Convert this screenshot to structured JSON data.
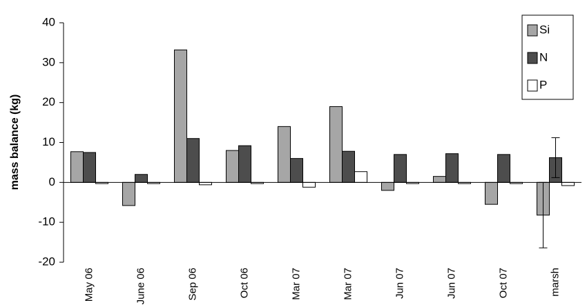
{
  "chart_data": {
    "type": "bar",
    "y_label": "mass balance (kg)",
    "categories": [
      "May 06",
      "June 06",
      "Sep 06",
      "Oct 06",
      "Mar 07",
      "Mar 07",
      "Jun 07",
      "Jun 07",
      "Oct 07",
      "marsh"
    ],
    "series": [
      {
        "name": "Si",
        "color": "#a6a6a6",
        "values": [
          7.7,
          -5.8,
          33.2,
          8,
          14,
          19,
          -2,
          1.5,
          -5.5,
          -8.2
        ],
        "errors": [
          null,
          null,
          null,
          null,
          null,
          null,
          null,
          null,
          null,
          8.2
        ]
      },
      {
        "name": "N",
        "color": "#4d4d4d",
        "values": [
          7.5,
          2,
          11,
          9.2,
          6,
          7.8,
          7,
          7.2,
          7,
          6.2
        ],
        "errors": [
          null,
          null,
          null,
          null,
          null,
          null,
          null,
          null,
          null,
          5
        ]
      },
      {
        "name": "P",
        "color": "#ffffff",
        "values": [
          -0.3,
          -0.3,
          -0.6,
          -0.3,
          -1.2,
          2.7,
          -0.3,
          -0.3,
          -0.3,
          -0.8
        ]
      }
    ],
    "ylim": [
      -20,
      40
    ],
    "yticks": [
      -20,
      -10,
      0,
      10,
      20,
      30,
      40
    ],
    "grid": false,
    "legend": "top-right"
  }
}
